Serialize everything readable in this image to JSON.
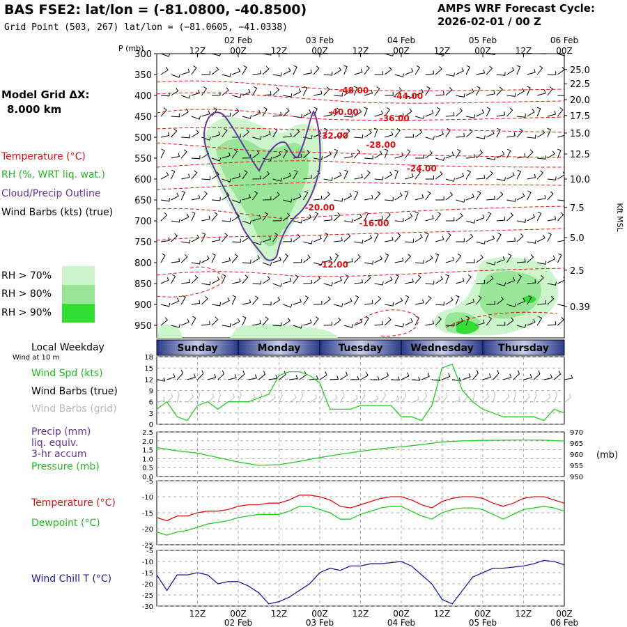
{
  "header": {
    "title": "BAS FSE2:  lat/lon = (-81.0800, -40.8500)",
    "grid_point": "Grid Point (503, 267) lat/lon = (−81.0605, −41.0338)",
    "cycle_title": "AMPS WRF Forecast Cycle:",
    "cycle_value": "2026-02-01 / 00  Z"
  },
  "left_panel": {
    "model_grid_label": "Model Grid ΔX:",
    "model_grid_value": "8.000 km",
    "legend_temperature": "Temperature (°C)",
    "legend_rh": "RH (%, WRT liq. wat.)",
    "legend_cloud": "Cloud/Precip Outline",
    "legend_wind": "Wind Barbs (kts) (true)",
    "rh70": "RH > 70%",
    "rh80": "RH > 80%",
    "rh90": "RH > 90%",
    "local_weekday": "Local Weekday",
    "wind_at_10m": "Wind at 10 m",
    "wind_spd": "Wind Spd (kts)",
    "wind_barbs_true": "Wind Barbs (true)",
    "wind_barbs_grid": "Wind Barbs (grid)",
    "precip": "Precip (mm)",
    "liq_equiv": "liq. equiv.",
    "accum": "3-hr accum",
    "pressure": "Pressure (mb)",
    "temperature": "Temperature (°C)",
    "dewpoint": "Dewpoint (°C)",
    "wind_chill": "Wind Chill T (°C)"
  },
  "colors": {
    "temperature": "#e01010",
    "rh_light": "#ccf5cc",
    "rh_mid": "#99e699",
    "rh_dark": "#33dd33",
    "cloud_outline": "#663399",
    "wind_speed": "#22cc22",
    "grid_barb": "#bbbbbb",
    "wind_chill": "#1a1aa0",
    "weekday_band": "#3a4a99"
  },
  "chart_data": [
    {
      "type": "time-height",
      "xaxis_top_ticks": [
        "12Z",
        "00Z",
        "12Z",
        "00Z",
        "12Z",
        "00Z",
        "12Z",
        "00Z",
        "12Z",
        "00Z"
      ],
      "xaxis_dates": [
        "02 Feb",
        "03 Feb",
        "04 Feb",
        "05 Feb",
        "06 Feb"
      ],
      "xlim_hours": [
        0,
        120
      ],
      "ylabel_left": "P (mb)",
      "pressure_levels": [
        300,
        350,
        400,
        450,
        500,
        550,
        600,
        650,
        700,
        750,
        800,
        850,
        900,
        950
      ],
      "ylim_mb": [
        300,
        980
      ],
      "ylabel_right": "Kft MSL",
      "height_ticks": [
        {
          "p": 338,
          "label": "25.0"
        },
        {
          "p": 372,
          "label": "22.5"
        },
        {
          "p": 410,
          "label": "20.0"
        },
        {
          "p": 448,
          "label": "17.5"
        },
        {
          "p": 490,
          "label": "15.0"
        },
        {
          "p": 540,
          "label": "12.5"
        },
        {
          "p": 600,
          "label": "10.0"
        },
        {
          "p": 668,
          "label": "7.5"
        },
        {
          "p": 740,
          "label": "5.0"
        },
        {
          "p": 818,
          "label": "2.5"
        },
        {
          "p": 905,
          "label": "0.39"
        }
      ],
      "temperature_labels": [
        {
          "hour": 58,
          "p": 388,
          "label": "-48.00"
        },
        {
          "hour": 74,
          "p": 402,
          "label": "-44.00"
        },
        {
          "hour": 55,
          "p": 440,
          "label": "-40.00"
        },
        {
          "hour": 70,
          "p": 455,
          "label": "-36.00"
        },
        {
          "hour": 52,
          "p": 497,
          "label": "-32.00"
        },
        {
          "hour": 66,
          "p": 518,
          "label": "-28.00"
        },
        {
          "hour": 78,
          "p": 575,
          "label": "-24.00"
        },
        {
          "hour": 48,
          "p": 668,
          "label": "-20.00"
        },
        {
          "hour": 64,
          "p": 706,
          "label": "-16.00"
        },
        {
          "hour": 52,
          "p": 805,
          "label": "-12.00"
        }
      ]
    },
    {
      "type": "weekday-band",
      "days": [
        "Sunday",
        "Monday",
        "Tuesday",
        "Wednesday",
        "Thursday"
      ],
      "day_start_hours": [
        0,
        24,
        48,
        72,
        96
      ]
    },
    {
      "type": "line",
      "name": "wind",
      "hours": [
        0,
        3,
        6,
        9,
        12,
        15,
        18,
        21,
        24,
        27,
        30,
        33,
        36,
        39,
        42,
        45,
        48,
        51,
        54,
        57,
        60,
        63,
        66,
        69,
        72,
        75,
        78,
        81,
        84,
        87,
        90,
        93,
        96,
        99,
        102,
        105,
        108,
        111,
        114,
        117,
        120
      ],
      "values": [
        4,
        6,
        2,
        1,
        5,
        6,
        4,
        6,
        6,
        6,
        7,
        8,
        13,
        14,
        14,
        13,
        11,
        4,
        4,
        4,
        5,
        5,
        5,
        5,
        2,
        2,
        1,
        5,
        15,
        16,
        9,
        6,
        4,
        3,
        2,
        2,
        2,
        2,
        1,
        4,
        3
      ],
      "ylim": [
        0,
        18
      ],
      "yticks": [
        0,
        3,
        6,
        9,
        12,
        15,
        18
      ]
    },
    {
      "type": "line",
      "name": "pressure",
      "hours": [
        0,
        6,
        12,
        18,
        24,
        30,
        36,
        42,
        48,
        54,
        60,
        66,
        72,
        78,
        84,
        90,
        96,
        102,
        108,
        114,
        120
      ],
      "values": [
        963.0,
        961.5,
        960.5,
        958.5,
        956.5,
        955.0,
        955.3,
        956.8,
        958.5,
        960.0,
        961.3,
        962.5,
        963.3,
        964.3,
        965.5,
        966.0,
        966.2,
        966.3,
        966.4,
        966.3,
        965.9
      ],
      "left_ylim": [
        0,
        2.5
      ],
      "left_yticks": [
        "0.0",
        "0.5",
        "1.0",
        "1.5",
        "2.0",
        "2.5"
      ],
      "right_ylim": [
        950,
        970
      ],
      "right_yticks": [
        950,
        955,
        960,
        965,
        970
      ],
      "right_unit": "(mb)"
    },
    {
      "type": "line",
      "name": "temperature-dewpoint",
      "hours": [
        0,
        3,
        6,
        9,
        12,
        15,
        18,
        21,
        24,
        27,
        30,
        33,
        36,
        39,
        42,
        45,
        48,
        51,
        54,
        57,
        60,
        63,
        66,
        69,
        72,
        75,
        78,
        81,
        84,
        87,
        90,
        93,
        96,
        99,
        102,
        105,
        108,
        111,
        114,
        117,
        120
      ],
      "series": [
        {
          "name": "Temperature",
          "values": [
            -16.5,
            -17.5,
            -16,
            -16,
            -15,
            -14.5,
            -14.5,
            -14,
            -13,
            -12.5,
            -12.5,
            -12,
            -12,
            -11,
            -9.5,
            -9.5,
            -10,
            -11,
            -13,
            -13.5,
            -12.5,
            -11.5,
            -10.5,
            -10,
            -10,
            -11,
            -12.5,
            -13.5,
            -11.5,
            -10.5,
            -10,
            -10,
            -10.5,
            -12,
            -13,
            -12,
            -10.5,
            -10,
            -10,
            -11,
            -12
          ]
        },
        {
          "name": "Dewpoint",
          "values": [
            -21,
            -22,
            -21,
            -20.5,
            -19.5,
            -18.5,
            -18,
            -17.5,
            -16.5,
            -16,
            -15.5,
            -15.5,
            -15.5,
            -14.5,
            -13,
            -13,
            -14,
            -15,
            -17,
            -17,
            -15.5,
            -14.5,
            -13.5,
            -13,
            -13,
            -14.5,
            -16,
            -17,
            -15,
            -14,
            -13.5,
            -13.5,
            -14,
            -15.5,
            -17,
            -15.5,
            -14,
            -13.5,
            -13,
            -13.5,
            -14.5
          ]
        }
      ],
      "ylim": [
        -25,
        -5
      ],
      "yticks": [
        -25,
        -20,
        -15,
        -10,
        -5
      ]
    },
    {
      "type": "line",
      "name": "wind-chill",
      "hours": [
        0,
        3,
        6,
        9,
        12,
        15,
        18,
        21,
        24,
        27,
        30,
        33,
        36,
        39,
        42,
        45,
        48,
        51,
        54,
        57,
        60,
        63,
        66,
        69,
        72,
        75,
        78,
        81,
        84,
        87,
        90,
        93,
        96,
        99,
        102,
        105,
        108,
        111,
        114,
        117,
        120
      ],
      "values": [
        -16,
        -23,
        -16,
        -16,
        -15,
        -16,
        -20,
        -19,
        -19,
        -21,
        -24,
        -29,
        -28,
        -26,
        -23,
        -20,
        -15,
        -13,
        -14,
        -12,
        -12,
        -11,
        -11,
        -10.5,
        -10,
        -12,
        -16,
        -20,
        -27,
        -29,
        -23,
        -17,
        -15,
        -13,
        -13,
        -12.5,
        -12,
        -11,
        -9.5,
        -10,
        -11.5
      ],
      "ylim": [
        -30,
        -5
      ],
      "yticks": [
        -30,
        -25,
        -20,
        -15,
        -10,
        -5
      ],
      "xaxis_bottom_ticks": [
        "12Z",
        "00Z",
        "12Z",
        "00Z",
        "12Z",
        "00Z",
        "12Z",
        "00Z",
        "12Z",
        "00Z"
      ],
      "xaxis_dates": [
        "02 Feb",
        "03 Feb",
        "04 Feb",
        "05 Feb",
        "06 Feb"
      ]
    }
  ]
}
